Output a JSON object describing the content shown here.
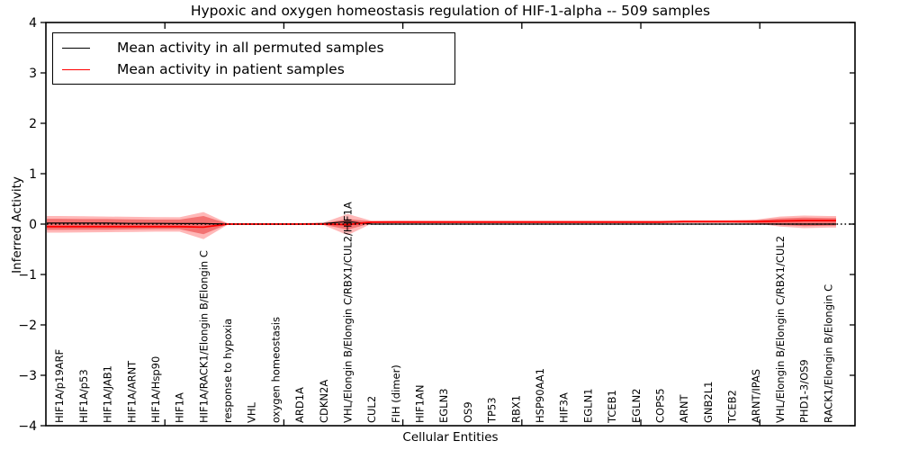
{
  "chart_data": {
    "type": "line",
    "title": "Hypoxic and oxygen homeostasis regulation of HIF-1-alpha -- 509 samples",
    "xlabel": "Cellular Entities",
    "ylabel": "Inferred Activity",
    "ylim": [
      -4,
      4
    ],
    "yticks": [
      4,
      3,
      2,
      1,
      0,
      -1,
      -2,
      -3,
      -4
    ],
    "x_axis_range": [
      0,
      34
    ],
    "x_tick_positions_units": [
      5,
      10,
      15,
      20,
      25,
      30
    ],
    "grid": false,
    "zero_line": {
      "style": "dotted",
      "color": "#000000",
      "y": 0
    },
    "legend_position": "upper-left",
    "categories": [
      "HIF1A/p19ARF",
      "HIF1A/p53",
      "HIF1A/JAB1",
      "HIF1A/ARNT",
      "HIF1A/Hsp90",
      "HIF1A",
      "HIF1A/RACK1/Elongin B/Elongin C",
      "response to hypoxia",
      "VHL",
      "oxygen homeostasis",
      "ARD1A",
      "CDKN2A",
      "VHL/Elongin B/Elongin C/RBX1/CUL2/HIF1A",
      "CUL2",
      "FIH (dimer)",
      "HIF1AN",
      "EGLN3",
      "OS9",
      "TP53",
      "RBX1",
      "HSP90AA1",
      "HIF3A",
      "EGLN1",
      "TCEB1",
      "EGLN2",
      "COPS5",
      "ARNT",
      "GNB2L1",
      "TCEB2",
      "ARNT/IPAS",
      "VHL/Elongin B/Elongin C/RBX1/CUL2",
      "PHD1-3/OS9",
      "RACK1/Elongin B/Elongin C"
    ],
    "series": [
      {
        "name": "Mean activity in all permuted samples",
        "color": "#000000",
        "values": [
          0.02,
          0.02,
          0.02,
          0.015,
          0.015,
          0.01,
          0.01,
          0,
          0,
          0,
          0,
          0.01,
          0.05,
          0,
          0,
          0,
          0,
          0,
          0,
          0,
          0,
          0,
          0,
          0,
          0,
          0,
          0,
          0,
          0,
          0,
          0,
          0,
          0
        ]
      },
      {
        "name": "Mean activity in patient samples",
        "color": "#ff0000",
        "values": [
          -0.05,
          -0.05,
          -0.05,
          -0.05,
          -0.05,
          -0.05,
          -0.06,
          0,
          0,
          0,
          0,
          0,
          -0.01,
          0.04,
          0.04,
          0.04,
          0.04,
          0.04,
          0.04,
          0.04,
          0.04,
          0.04,
          0.04,
          0.04,
          0.04,
          0.04,
          0.05,
          0.05,
          0.05,
          0.05,
          0.06,
          0.07,
          0.07
        ]
      }
    ],
    "band_outer": {
      "color": "#ff0000",
      "opacity": 0.28,
      "top": [
        0.16,
        0.155,
        0.15,
        0.145,
        0.14,
        0.135,
        0.24,
        0.02,
        0.02,
        0.02,
        0.02,
        0.03,
        0.2,
        0.065,
        0.07,
        0.07,
        0.07,
        0.07,
        0.07,
        0.07,
        0.07,
        0.07,
        0.07,
        0.07,
        0.07,
        0.07,
        0.075,
        0.075,
        0.08,
        0.09,
        0.15,
        0.17,
        0.16
      ],
      "bottom": [
        -0.17,
        -0.165,
        -0.16,
        -0.155,
        -0.15,
        -0.15,
        -0.3,
        -0.015,
        -0.015,
        -0.015,
        -0.015,
        -0.02,
        -0.22,
        0.01,
        0.015,
        0.015,
        0.015,
        0.015,
        0.015,
        0.015,
        0.015,
        0.015,
        0.015,
        0.015,
        0.015,
        0.015,
        0.02,
        0.02,
        0.02,
        0.01,
        -0.05,
        -0.08,
        -0.07
      ]
    },
    "band_inner": {
      "color": "#e00000",
      "opacity": 0.38,
      "top": [
        0.105,
        0.1,
        0.1,
        0.095,
        0.09,
        0.09,
        0.16,
        0.01,
        0.01,
        0.01,
        0.01,
        0.015,
        0.1,
        0.055,
        0.06,
        0.06,
        0.06,
        0.06,
        0.06,
        0.06,
        0.06,
        0.06,
        0.06,
        0.06,
        0.06,
        0.06,
        0.065,
        0.065,
        0.065,
        0.075,
        0.11,
        0.13,
        0.12
      ],
      "bottom": [
        -0.115,
        -0.11,
        -0.11,
        -0.105,
        -0.1,
        -0.1,
        -0.2,
        -0.005,
        -0.005,
        -0.005,
        -0.005,
        -0.01,
        -0.11,
        0.02,
        0.025,
        0.025,
        0.025,
        0.025,
        0.025,
        0.025,
        0.025,
        0.025,
        0.025,
        0.025,
        0.025,
        0.025,
        0.03,
        0.03,
        0.03,
        0.02,
        -0.02,
        -0.04,
        -0.03
      ]
    }
  },
  "legend": [
    {
      "label": "Mean activity in all permuted samples",
      "color": "#000000"
    },
    {
      "label": "Mean activity in patient samples",
      "color": "#ff0000"
    }
  ],
  "colors": {
    "frame": "#000000",
    "background": "#ffffff",
    "patient_line": "#ff0000",
    "permuted_line": "#000000"
  }
}
